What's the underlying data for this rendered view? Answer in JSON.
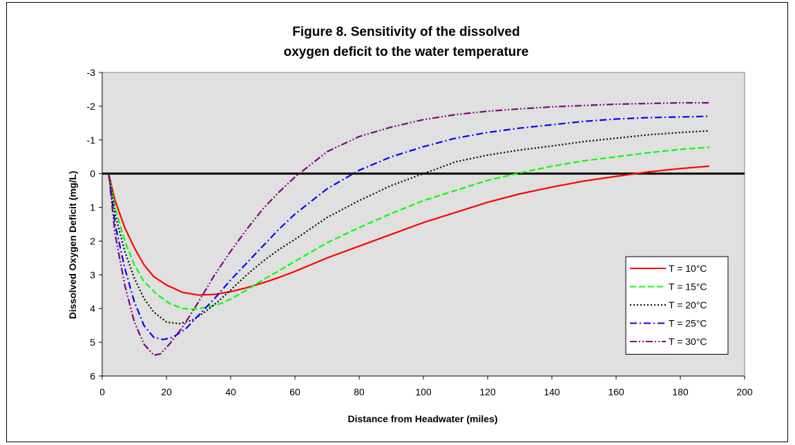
{
  "chart_data": {
    "type": "line",
    "title_lines": [
      "Figure 8.  Sensitivity of the dissolved",
      "oxygen deficit to the water temperature"
    ],
    "xlabel": "Distance from Headwater (miles)",
    "ylabel": "Dissolved Oxygen Deficit (mg/L)",
    "xlim": [
      0,
      200
    ],
    "ylim": [
      -3,
      6
    ],
    "y_inverted": true,
    "x_ticks": [
      0,
      20,
      40,
      60,
      80,
      100,
      120,
      140,
      160,
      180,
      200
    ],
    "x_tick_labels": [
      "0",
      "20",
      "40",
      "60",
      "80",
      "100",
      "120",
      "140",
      "160",
      "180",
      "200"
    ],
    "y_ticks": [
      -3,
      -2,
      -1,
      0,
      1,
      2,
      3,
      4,
      5,
      6
    ],
    "y_tick_labels": [
      "-3",
      "-2",
      "-1",
      "0",
      "1",
      "2",
      "3",
      "4",
      "5",
      "6"
    ],
    "grid": false,
    "plot_background": "#e0e0e0",
    "zero_line": 0,
    "legend_position": "bottom-right",
    "series": [
      {
        "name": "T = 10°C",
        "color": "#ff0000",
        "dash": "solid",
        "points": [
          [
            2,
            0
          ],
          [
            4,
            0.8
          ],
          [
            7,
            1.6
          ],
          [
            10,
            2.2
          ],
          [
            13,
            2.7
          ],
          [
            16,
            3.05
          ],
          [
            20,
            3.3
          ],
          [
            25,
            3.52
          ],
          [
            30,
            3.6
          ],
          [
            35,
            3.58
          ],
          [
            40,
            3.5
          ],
          [
            45,
            3.38
          ],
          [
            50,
            3.24
          ],
          [
            55,
            3.08
          ],
          [
            60,
            2.9
          ],
          [
            70,
            2.5
          ],
          [
            80,
            2.15
          ],
          [
            90,
            1.8
          ],
          [
            100,
            1.45
          ],
          [
            110,
            1.15
          ],
          [
            120,
            0.85
          ],
          [
            130,
            0.6
          ],
          [
            140,
            0.4
          ],
          [
            150,
            0.22
          ],
          [
            160,
            0.08
          ],
          [
            170,
            -0.05
          ],
          [
            180,
            -0.15
          ],
          [
            189,
            -0.22
          ]
        ]
      },
      {
        "name": "T = 15°C",
        "color": "#00ff00",
        "dash": "dashed",
        "points": [
          [
            2,
            0
          ],
          [
            4,
            1.0
          ],
          [
            7,
            2.0
          ],
          [
            10,
            2.7
          ],
          [
            13,
            3.2
          ],
          [
            17,
            3.58
          ],
          [
            21,
            3.85
          ],
          [
            25,
            4.0
          ],
          [
            29,
            4.02
          ],
          [
            33,
            3.95
          ],
          [
            37,
            3.85
          ],
          [
            40,
            3.72
          ],
          [
            45,
            3.45
          ],
          [
            50,
            3.15
          ],
          [
            55,
            2.88
          ],
          [
            60,
            2.6
          ],
          [
            70,
            2.05
          ],
          [
            80,
            1.6
          ],
          [
            90,
            1.18
          ],
          [
            100,
            0.8
          ],
          [
            110,
            0.5
          ],
          [
            120,
            0.2
          ],
          [
            130,
            -0.02
          ],
          [
            140,
            -0.22
          ],
          [
            150,
            -0.38
          ],
          [
            160,
            -0.5
          ],
          [
            170,
            -0.62
          ],
          [
            180,
            -0.72
          ],
          [
            189,
            -0.78
          ]
        ]
      },
      {
        "name": "T = 20°C",
        "color": "#000000",
        "dash": "dotted",
        "points": [
          [
            2,
            0
          ],
          [
            4,
            1.2
          ],
          [
            7,
            2.3
          ],
          [
            10,
            3.1
          ],
          [
            13,
            3.7
          ],
          [
            16,
            4.1
          ],
          [
            20,
            4.4
          ],
          [
            24,
            4.45
          ],
          [
            28,
            4.35
          ],
          [
            32,
            4.1
          ],
          [
            36,
            3.8
          ],
          [
            40,
            3.45
          ],
          [
            45,
            3.0
          ],
          [
            50,
            2.6
          ],
          [
            55,
            2.25
          ],
          [
            60,
            1.95
          ],
          [
            70,
            1.3
          ],
          [
            80,
            0.8
          ],
          [
            90,
            0.35
          ],
          [
            100,
            0.0
          ],
          [
            110,
            -0.35
          ],
          [
            120,
            -0.55
          ],
          [
            130,
            -0.7
          ],
          [
            140,
            -0.82
          ],
          [
            150,
            -0.95
          ],
          [
            160,
            -1.05
          ],
          [
            170,
            -1.15
          ],
          [
            180,
            -1.22
          ],
          [
            189,
            -1.27
          ]
        ]
      },
      {
        "name": "T = 25°C",
        "color": "#0000ff",
        "dash": "dashdot",
        "points": [
          [
            2,
            0
          ],
          [
            4,
            1.5
          ],
          [
            7,
            2.8
          ],
          [
            10,
            3.8
          ],
          [
            13,
            4.5
          ],
          [
            16,
            4.85
          ],
          [
            19,
            4.92
          ],
          [
            22,
            4.85
          ],
          [
            26,
            4.6
          ],
          [
            30,
            4.2
          ],
          [
            35,
            3.7
          ],
          [
            40,
            3.15
          ],
          [
            45,
            2.65
          ],
          [
            50,
            2.15
          ],
          [
            55,
            1.65
          ],
          [
            60,
            1.2
          ],
          [
            70,
            0.45
          ],
          [
            80,
            -0.1
          ],
          [
            90,
            -0.5
          ],
          [
            100,
            -0.8
          ],
          [
            110,
            -1.05
          ],
          [
            120,
            -1.22
          ],
          [
            130,
            -1.35
          ],
          [
            140,
            -1.45
          ],
          [
            150,
            -1.55
          ],
          [
            160,
            -1.62
          ],
          [
            170,
            -1.66
          ],
          [
            180,
            -1.68
          ],
          [
            189,
            -1.7
          ]
        ]
      },
      {
        "name": "T = 30°C",
        "color": "#7f007f",
        "dash": "dashdotdot",
        "points": [
          [
            2,
            0
          ],
          [
            4,
            1.8
          ],
          [
            7,
            3.3
          ],
          [
            10,
            4.4
          ],
          [
            13,
            5.05
          ],
          [
            16,
            5.38
          ],
          [
            18,
            5.35
          ],
          [
            21,
            5.05
          ],
          [
            25,
            4.55
          ],
          [
            30,
            3.8
          ],
          [
            35,
            3.0
          ],
          [
            40,
            2.3
          ],
          [
            45,
            1.65
          ],
          [
            50,
            1.05
          ],
          [
            55,
            0.55
          ],
          [
            60,
            0.1
          ],
          [
            70,
            -0.65
          ],
          [
            80,
            -1.1
          ],
          [
            90,
            -1.38
          ],
          [
            100,
            -1.6
          ],
          [
            110,
            -1.75
          ],
          [
            120,
            -1.85
          ],
          [
            130,
            -1.92
          ],
          [
            140,
            -1.98
          ],
          [
            150,
            -2.02
          ],
          [
            160,
            -2.06
          ],
          [
            170,
            -2.08
          ],
          [
            180,
            -2.1
          ],
          [
            189,
            -2.1
          ]
        ]
      }
    ]
  }
}
